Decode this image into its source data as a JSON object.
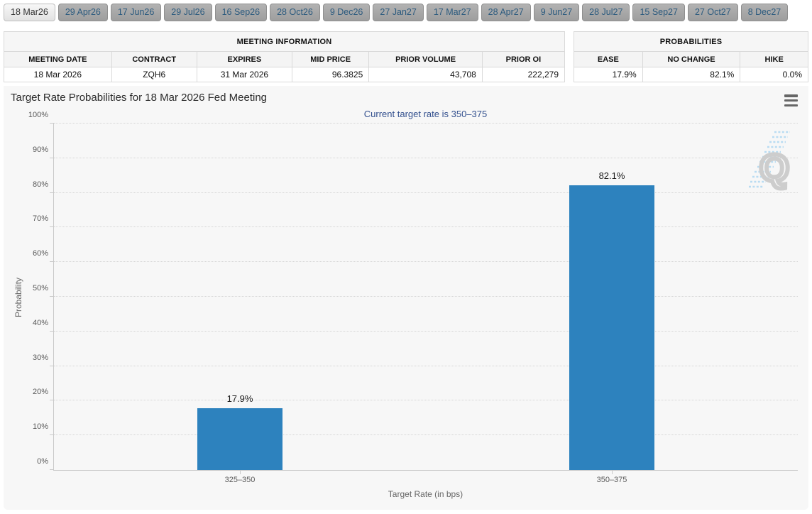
{
  "tabs": {
    "items": [
      {
        "label": "18 Mar26",
        "active": true
      },
      {
        "label": "29 Apr26",
        "active": false
      },
      {
        "label": "17 Jun26",
        "active": false
      },
      {
        "label": "29 Jul26",
        "active": false
      },
      {
        "label": "16 Sep26",
        "active": false
      },
      {
        "label": "28 Oct26",
        "active": false
      },
      {
        "label": "9 Dec26",
        "active": false
      },
      {
        "label": "27 Jan27",
        "active": false
      },
      {
        "label": "17 Mar27",
        "active": false
      },
      {
        "label": "28 Apr27",
        "active": false
      },
      {
        "label": "9 Jun27",
        "active": false
      },
      {
        "label": "28 Jul27",
        "active": false
      },
      {
        "label": "15 Sep27",
        "active": false
      },
      {
        "label": "27 Oct27",
        "active": false
      },
      {
        "label": "8 Dec27",
        "active": false
      }
    ]
  },
  "meeting_info": {
    "title": "MEETING INFORMATION",
    "columns": [
      {
        "label": "MEETING DATE",
        "align": "center"
      },
      {
        "label": "CONTRACT",
        "align": "center"
      },
      {
        "label": "EXPIRES",
        "align": "center"
      },
      {
        "label": "MID PRICE",
        "align": "right"
      },
      {
        "label": "PRIOR VOLUME",
        "align": "right"
      },
      {
        "label": "PRIOR OI",
        "align": "right"
      }
    ],
    "row": [
      "18 Mar 2026",
      "ZQH6",
      "31 Mar 2026",
      "96.3825",
      "43,708",
      "222,279"
    ]
  },
  "probabilities": {
    "title": "PROBABILITIES",
    "columns": [
      {
        "label": "EASE",
        "align": "right"
      },
      {
        "label": "NO CHANGE",
        "align": "right"
      },
      {
        "label": "HIKE",
        "align": "right"
      }
    ],
    "row": [
      "17.9%",
      "82.1%",
      "0.0%"
    ]
  },
  "chart_data": {
    "type": "bar",
    "title": "Target Rate Probabilities for 18 Mar 2026 Fed Meeting",
    "subtitle": "Current target rate is 350–375",
    "categories": [
      "325–350",
      "350–375"
    ],
    "values": [
      17.9,
      82.1
    ],
    "value_labels": [
      "17.9%",
      "82.1%"
    ],
    "xlabel": "Target Rate (in bps)",
    "ylabel": "Probability",
    "ylim": [
      0,
      100
    ],
    "ytick_step": 10,
    "ytick_suffix": "%",
    "grid": "dotted horizontal",
    "legend": "none",
    "bar_color": "#2d82be"
  },
  "icons": {
    "chart_menu": "hamburger",
    "watermark": "quikstrike-q"
  },
  "colors": {
    "panel_bg": "#f7f7f7",
    "subtitle_text": "#33508e",
    "bar": "#2d82be",
    "tab_inactive_bg": "#a8a8a8",
    "tab_active_bg": "#ececec"
  }
}
